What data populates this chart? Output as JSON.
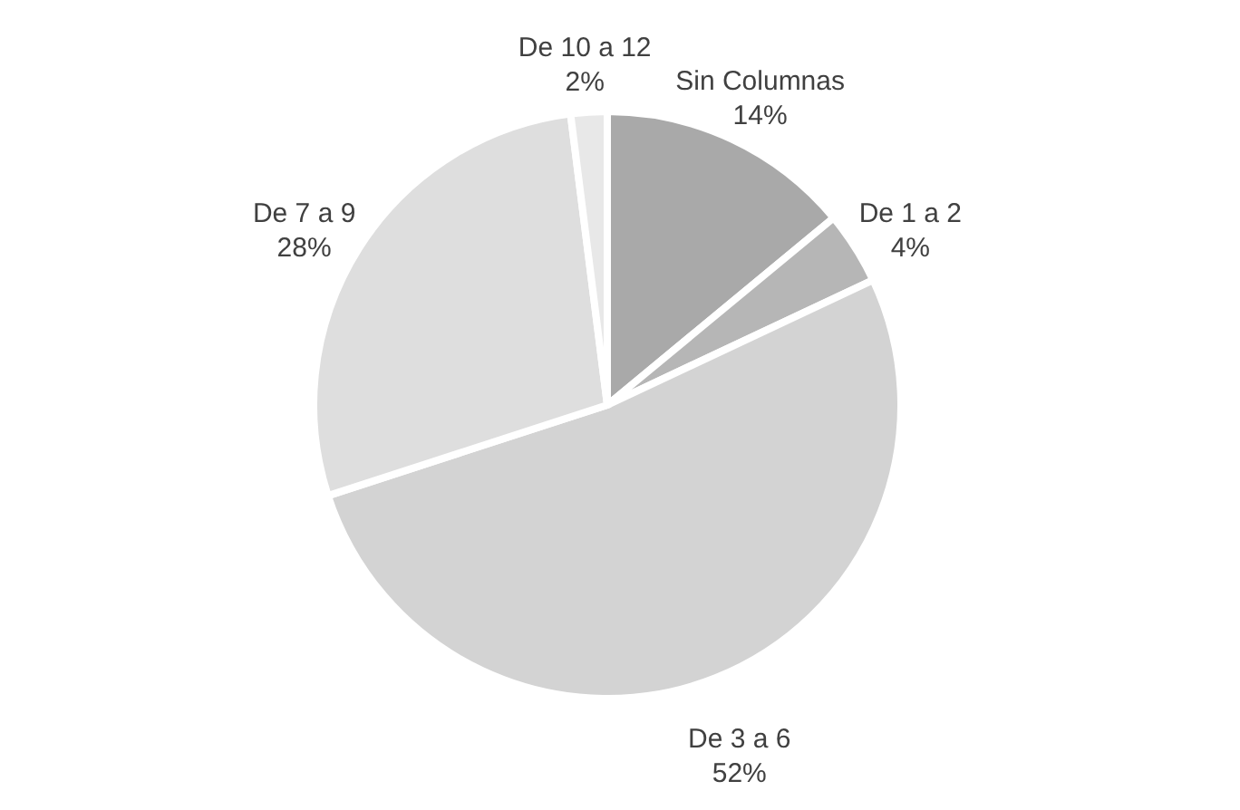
{
  "chart_data": {
    "type": "pie",
    "categories": [
      "Sin Columnas",
      "De 1 a 2",
      "De 3 a 6",
      "De 7 a 9",
      "De 10 a 12"
    ],
    "values": [
      14,
      4,
      52,
      28,
      2
    ],
    "value_labels": [
      "14%",
      "4%",
      "52%",
      "28%",
      "2%"
    ],
    "colors": [
      "#a9a9a9",
      "#b6b6b6",
      "#d3d3d3",
      "#dedede",
      "#e8e8e8"
    ]
  }
}
